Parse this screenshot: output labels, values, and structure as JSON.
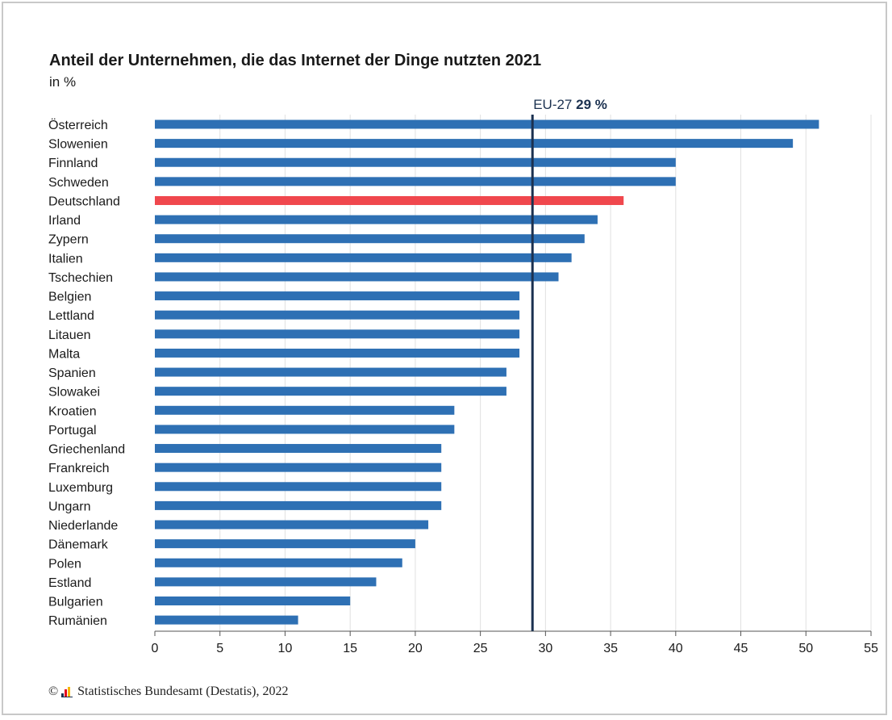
{
  "title": "Anteil der Unternehmen, die das Internet der Dinge nutzten 2021",
  "subtitle": "in %",
  "footer": {
    "copyright_symbol": "©",
    "source": "Statistisches Bundesamt (Destatis), 2022"
  },
  "colors": {
    "bar": "#2e70b4",
    "highlight": "#f0474d",
    "reference_line": "#1b3150",
    "grid": "#e0e0e0",
    "text": "#1a1a1a"
  },
  "chart_data": {
    "type": "bar",
    "orientation": "horizontal",
    "title": "Anteil der Unternehmen, die das Internet der Dinge nutzten 2021",
    "subtitle": "in %",
    "xlim": [
      0,
      55
    ],
    "xticks": [
      0,
      5,
      10,
      15,
      20,
      25,
      30,
      35,
      40,
      45,
      50,
      55
    ],
    "grid": true,
    "categories": [
      "Österreich",
      "Slowenien",
      "Finnland",
      "Schweden",
      "Deutschland",
      "Irland",
      "Zypern",
      "Italien",
      "Tschechien",
      "Belgien",
      "Lettland",
      "Litauen",
      "Malta",
      "Spanien",
      "Slowakei",
      "Kroatien",
      "Portugal",
      "Griechenland",
      "Frankreich",
      "Luxemburg",
      "Ungarn",
      "Niederlande",
      "Dänemark",
      "Polen",
      "Estland",
      "Bulgarien",
      "Rumänien"
    ],
    "values": [
      51,
      49,
      40,
      40,
      36,
      34,
      33,
      32,
      31,
      28,
      28,
      28,
      28,
      27,
      27,
      23,
      23,
      22,
      22,
      22,
      22,
      21,
      20,
      19,
      17,
      15,
      11
    ],
    "highlight_category": "Deutschland",
    "reference_line": {
      "value": 29,
      "label": "EU-27",
      "value_label": "29 %"
    }
  }
}
